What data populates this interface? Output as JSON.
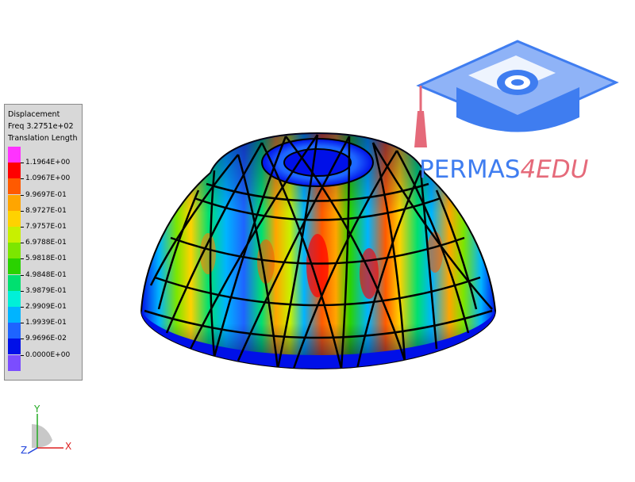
{
  "legend": {
    "title": "Displacement",
    "freq": "Freq 3.2751e+02",
    "quantity": "Translation Length",
    "colors": [
      "#ff33ff",
      "#ff0000",
      "#ff5a00",
      "#ffa500",
      "#ffd200",
      "#c8f000",
      "#7ce600",
      "#2ad200",
      "#00e070",
      "#00f0d8",
      "#00b4ff",
      "#1e64ff",
      "#0010e8",
      "#7b4dff"
    ],
    "labels": [
      "1.1964E+00",
      "1.0967E+00",
      "9.9697E-01",
      "8.9727E-01",
      "7.9757E-01",
      "6.9788E-01",
      "5.9818E-01",
      "4.9848E-01",
      "3.9879E-01",
      "2.9909E-01",
      "1.9939E-01",
      "9.9696E-02",
      "0.0000E+00"
    ]
  },
  "logo": {
    "part1": "PERMAS",
    "part2": "4EDU",
    "color1": "#3f7df0",
    "color2": "#e56a7a"
  },
  "triad": {
    "x": "X",
    "y": "Y",
    "z": "Z"
  }
}
